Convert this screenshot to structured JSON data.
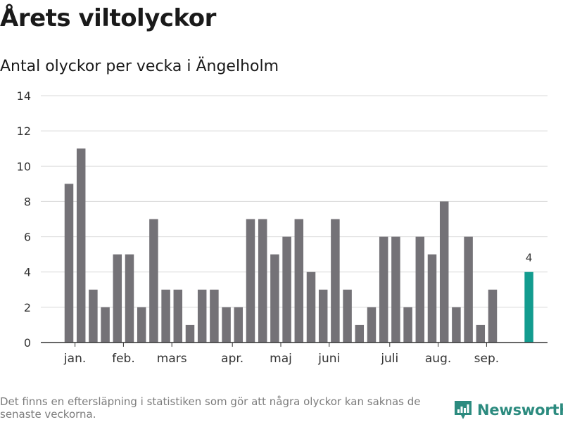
{
  "title": "Årets viltolyckor",
  "subtitle": "Antal olyckor per vecka i Ängelholm",
  "footnote": "Det finns en eftersläpning i statistiken som gör att några olyckor kan saknas de senaste veckorna.",
  "brand": {
    "name": "Newsworthy",
    "icon": "newsworthy-logo-icon",
    "color": "#2c8b7f"
  },
  "colors": {
    "bar": "#747277",
    "highlight": "#139c8f",
    "grid": "#d9d9d9",
    "axis": "#333333"
  },
  "chart_data": {
    "type": "bar",
    "title": "Antal olyckor per vecka i Ängelholm",
    "xlabel": "",
    "ylabel": "",
    "ylim": [
      0,
      14
    ],
    "yticks": [
      0,
      2,
      4,
      6,
      8,
      10,
      12,
      14
    ],
    "grid": true,
    "x": [
      1,
      2,
      3,
      4,
      5,
      6,
      7,
      8,
      9,
      10,
      11,
      12,
      13,
      14,
      15,
      16,
      17,
      18,
      19,
      20,
      21,
      22,
      23,
      24,
      25,
      26,
      27,
      28,
      29,
      30,
      31,
      32,
      33,
      34,
      35,
      36,
      37,
      38,
      39
    ],
    "values": [
      9,
      11,
      3,
      2,
      5,
      5,
      2,
      7,
      3,
      3,
      1,
      3,
      3,
      2,
      2,
      7,
      7,
      5,
      6,
      7,
      4,
      3,
      7,
      3,
      1,
      2,
      6,
      6,
      2,
      6,
      5,
      8,
      2,
      6,
      1,
      3,
      null,
      null,
      4
    ],
    "highlight_index": 38,
    "highlight_label": "4",
    "month_labels": [
      {
        "label": "jan.",
        "at_week": 1.5
      },
      {
        "label": "feb.",
        "at_week": 5.5
      },
      {
        "label": "mars",
        "at_week": 9.5
      },
      {
        "label": "apr.",
        "at_week": 14.5
      },
      {
        "label": "maj",
        "at_week": 18.5
      },
      {
        "label": "juni",
        "at_week": 22.5
      },
      {
        "label": "juli",
        "at_week": 27.5
      },
      {
        "label": "aug.",
        "at_week": 31.5
      },
      {
        "label": "sep.",
        "at_week": 35.5
      }
    ]
  }
}
